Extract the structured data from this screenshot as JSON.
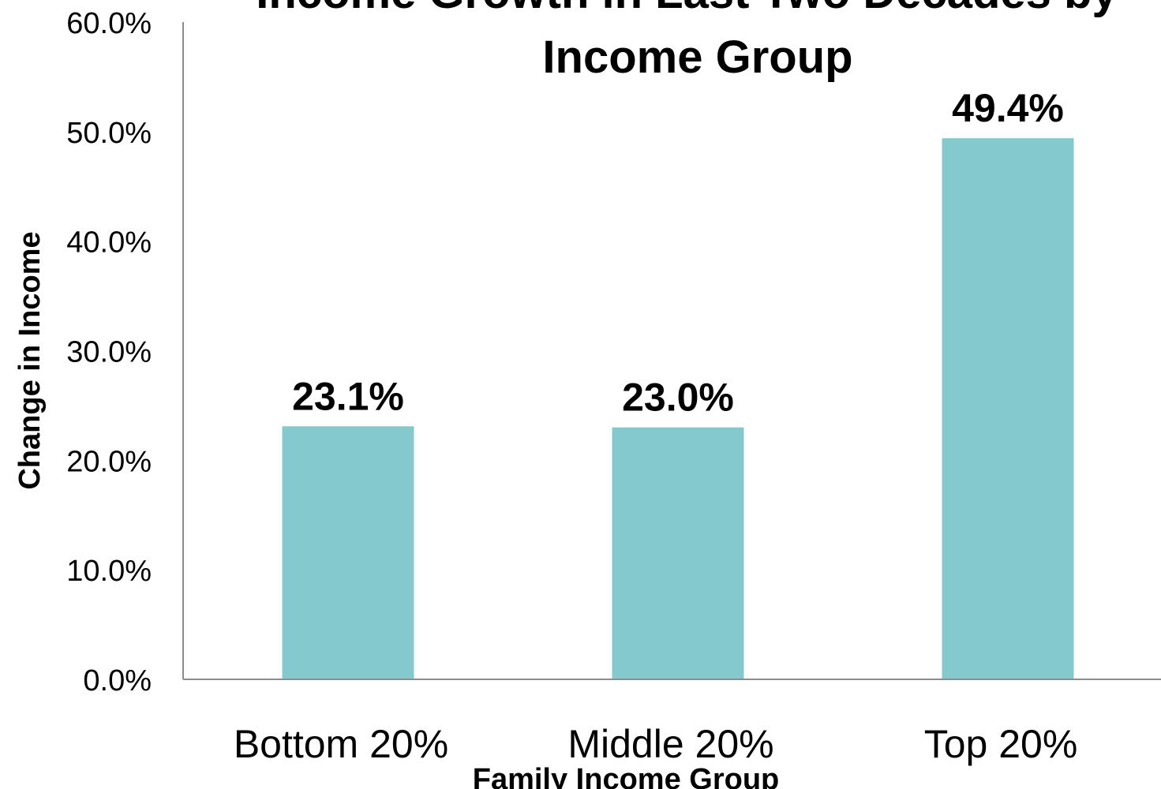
{
  "chart_data": {
    "type": "bar",
    "title_lines": [
      "Income Growth in Last Two Decades by",
      "Income Group"
    ],
    "xlabel": "Family Income Group",
    "ylabel": "Change in Income",
    "categories": [
      "Bottom 20%",
      "Middle 20%",
      "Top 20%"
    ],
    "values": [
      23.1,
      23.0,
      49.4
    ],
    "data_labels": [
      "23.1%",
      "23.0%",
      "49.4%"
    ],
    "ylim": [
      0,
      60
    ],
    "yticks": [
      0,
      10,
      20,
      30,
      40,
      50,
      60
    ],
    "ytick_labels": [
      "0.0%",
      "10.0%",
      "20.0%",
      "30.0%",
      "40.0%",
      "50.0%",
      "60.0%"
    ],
    "grid": false,
    "legend": "none",
    "colors": {
      "bar": "#84C9CD",
      "axis": "#8c8c8c",
      "text": "#000000"
    }
  }
}
